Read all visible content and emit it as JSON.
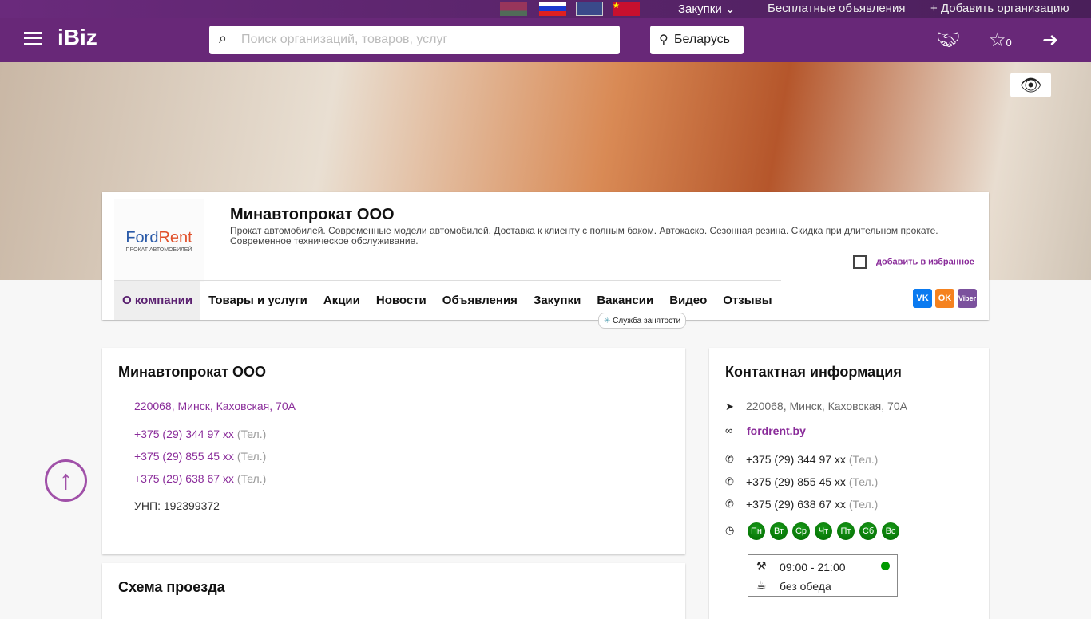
{
  "topbar": {
    "flags": [
      "Belarus",
      "Russia",
      "UK",
      "China"
    ],
    "purchases": "Закупки",
    "free_ads": "Бесплатные объявления",
    "add_org": "Добавить организацию"
  },
  "header": {
    "logo": "iBiz",
    "search_placeholder": "Поиск организаций, товаров, услуг",
    "region": "Беларусь",
    "favorites_count": "0"
  },
  "company": {
    "name": "Минавтопрокат ООО",
    "logo_text_1": "Ford",
    "logo_text_2": "Rent",
    "logo_sub": "ПРОКАТ АВТОМОБИЛЕЙ",
    "description": "Прокат автомобилей. Современные модели автомобилей. Доставка к клиенту с полным баком. Автокаско. Сезонная резина. Скидка при длительном прокате. Современное техническое обслуживание.",
    "add_favorite": "добавить в избранное"
  },
  "nav": [
    "О компании",
    "Товары и услуги",
    "Акции",
    "Новости",
    "Объявления",
    "Закупки",
    "Вакансии",
    "Видео",
    "Отзывы"
  ],
  "tooltip": "Служба занятости",
  "social": [
    "VK",
    "OK",
    "Viber"
  ],
  "about": {
    "title": "Минавтопрокат ООО",
    "address": "220068, Минск, Каховская, 70А",
    "phones": [
      {
        "n": "+375 (29) 344 97 xx",
        "t": "(Тел.)"
      },
      {
        "n": "+375 (29) 855 45 xx",
        "t": "(Тел.)"
      },
      {
        "n": "+375 (29) 638 67 xx",
        "t": "(Тел.)"
      }
    ],
    "unp": "УНП: 192399372"
  },
  "map": {
    "title": "Схема проезда"
  },
  "contacts": {
    "title": "Контактная информация",
    "address": "220068, Минск, Каховская, 70А",
    "site": "fordrent.by",
    "phones": [
      {
        "n": "+375 (29) 344 97 xx",
        "t": "(Тел.)"
      },
      {
        "n": "+375 (29) 855 45 xx",
        "t": "(Тел.)"
      },
      {
        "n": "+375 (29) 638 67 xx",
        "t": "(Тел.)"
      }
    ],
    "days": [
      "Пн",
      "Вт",
      "Ср",
      "Чт",
      "Пт",
      "Сб",
      "Вс"
    ],
    "hours": "09:00 - 21:00",
    "lunch": "без обеда",
    "open_color": "#009900"
  }
}
